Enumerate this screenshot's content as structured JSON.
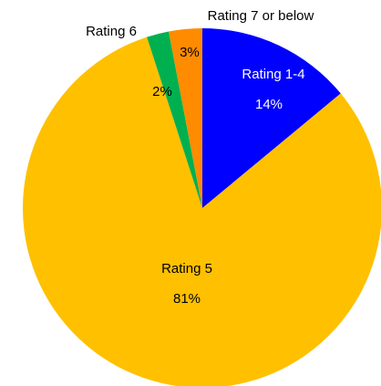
{
  "chart_data": {
    "type": "pie",
    "categories": [
      "Rating 1-4",
      "Rating 5",
      "Rating 6",
      "Rating 7 or below"
    ],
    "values": [
      14,
      81,
      2,
      3
    ],
    "value_labels": [
      "14%",
      "81%",
      "2%",
      "3%"
    ],
    "colors": [
      "#0000FF",
      "#FFC000",
      "#00B050",
      "#FF8C00"
    ]
  }
}
